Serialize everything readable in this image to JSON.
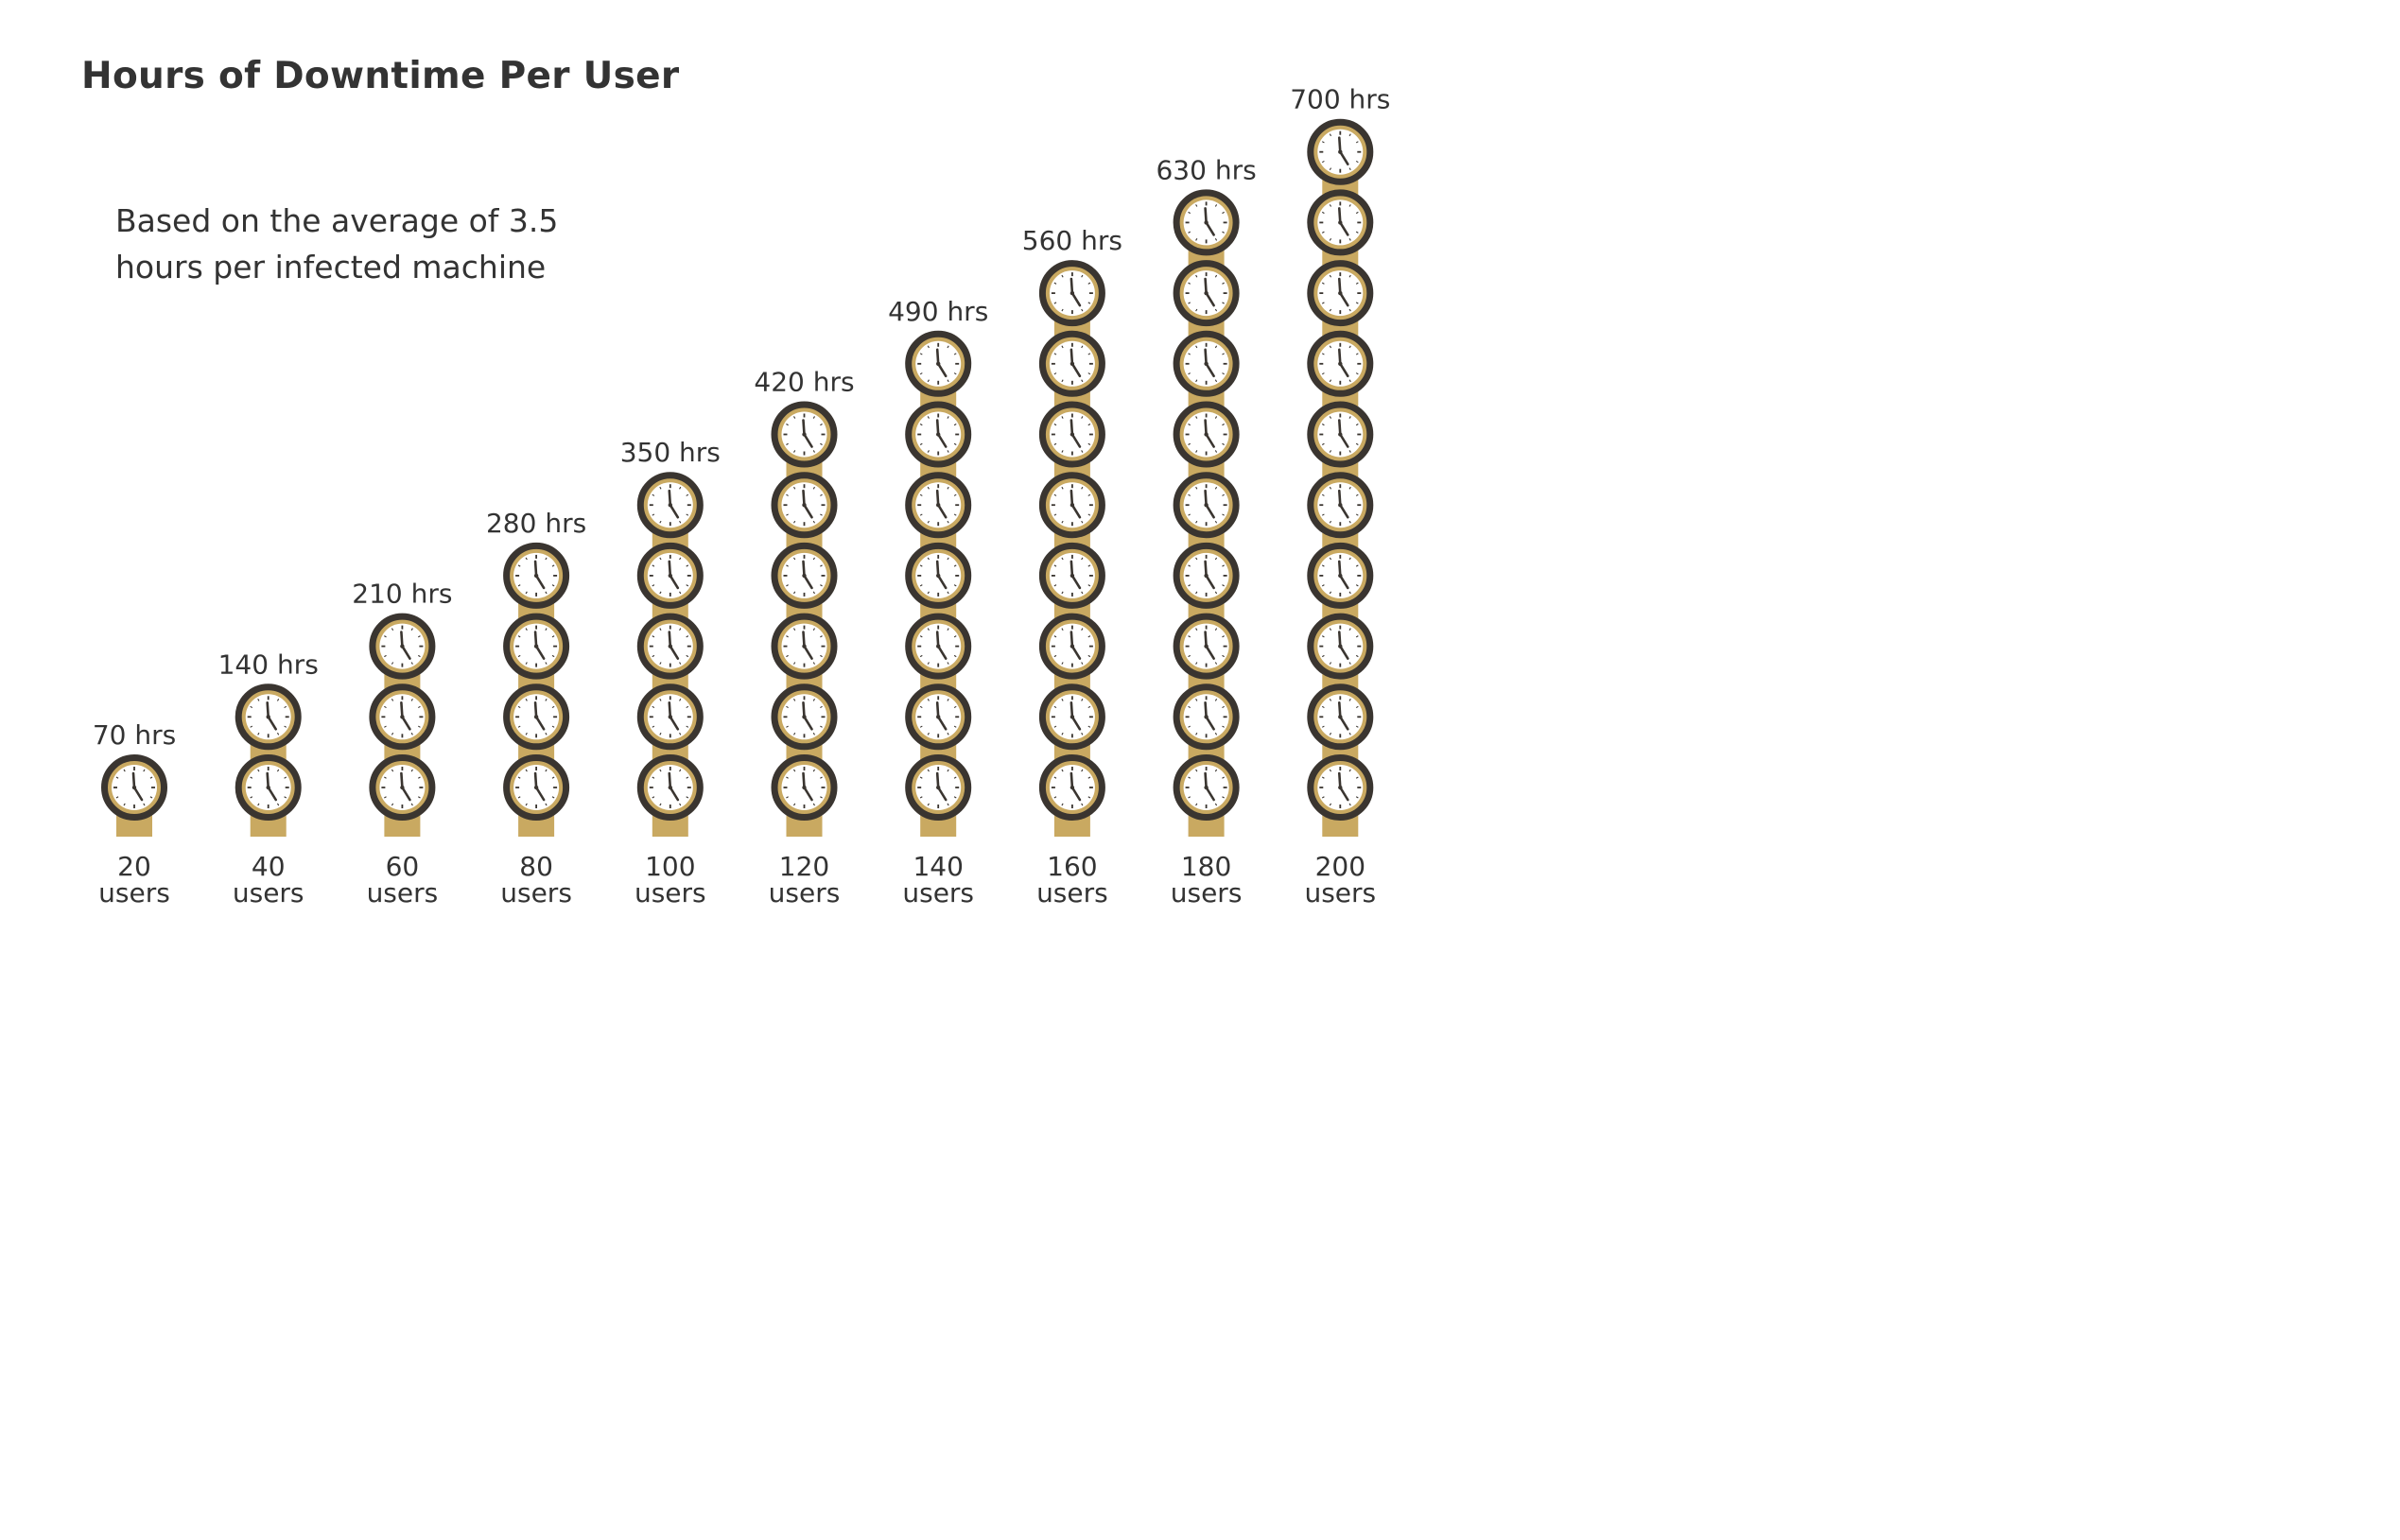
{
  "title": "Hours of Downtime Per User",
  "subtitle": "Based on the average of 3.5 hours per infected machine",
  "colors": {
    "text": "#333333",
    "stem": "#c9a961",
    "clock_rim": "#3a3530",
    "clock_inner_ring": "#c9a961",
    "clock_face": "#ffffff"
  },
  "icon": "clock-icon",
  "chart_data": {
    "type": "bar",
    "title": "Hours of Downtime Per User",
    "subtitle": "Based on the average of 3.5 hours per infected machine",
    "hours_per_unit": 3.5,
    "categories": [
      "20",
      "40",
      "60",
      "80",
      "100",
      "120",
      "140",
      "160",
      "180",
      "200"
    ],
    "category_unit": "users",
    "values": [
      70,
      140,
      210,
      280,
      350,
      420,
      490,
      560,
      630,
      700
    ],
    "value_labels": [
      "70 hrs",
      "140 hrs",
      "210 hrs",
      "280 hrs",
      "350 hrs",
      "420 hrs",
      "490 hrs",
      "560 hrs",
      "630 hrs",
      "700 hrs"
    ],
    "icons_per_bar": [
      1,
      2,
      3,
      4,
      5,
      6,
      7,
      8,
      9,
      10
    ],
    "grid": false,
    "legend": "none"
  }
}
